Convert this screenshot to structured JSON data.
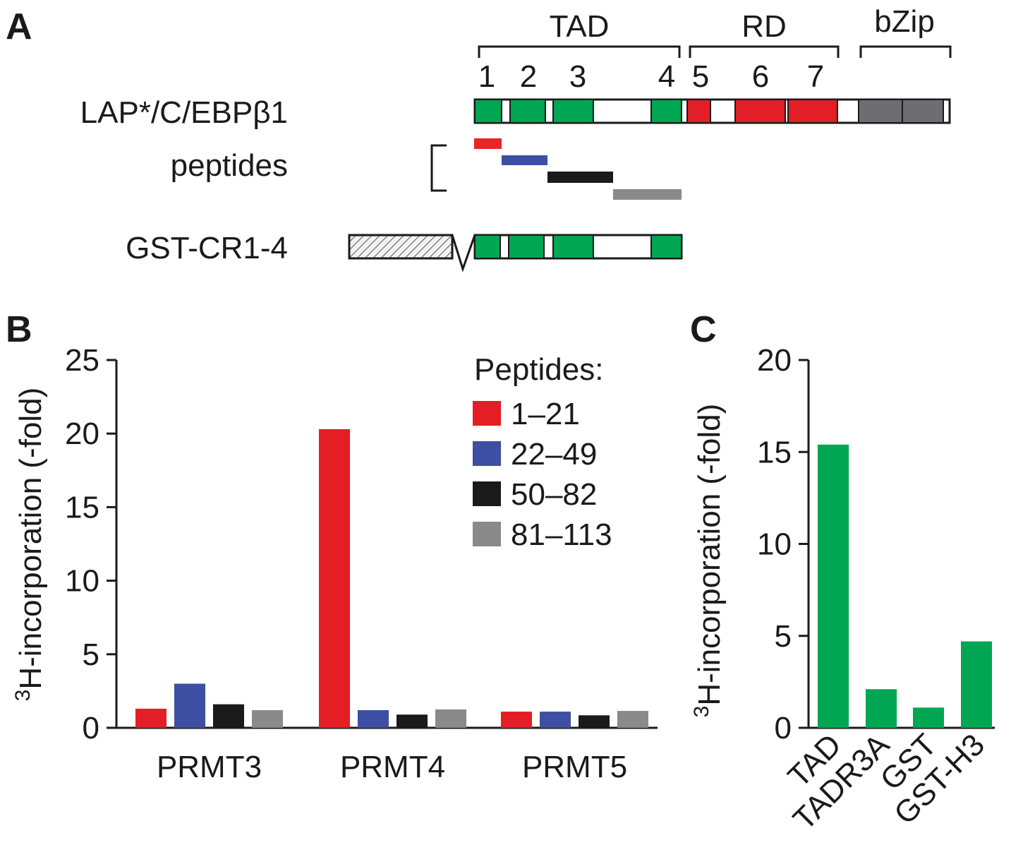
{
  "panels": {
    "a": {
      "letter": "A",
      "regions": [
        {
          "label": "TAD"
        },
        {
          "label": "RD"
        },
        {
          "label": "bZip"
        }
      ],
      "cr_numbers": [
        "1",
        "2",
        "3",
        "4",
        "5",
        "6",
        "7"
      ],
      "protein_label": "LAP*/C/EBPβ1",
      "peptides_label": "peptides",
      "gst_label": "GST-CR1-4",
      "colors": {
        "cr_tad": "#00a651",
        "cr_rd": "#e31e24",
        "bzip": "#6d6e71",
        "outline": "#1a1a1a"
      },
      "peptide_colors": [
        "#e8262a",
        "#3c4fa3",
        "#1a1a1a",
        "#8a8a8a"
      ]
    },
    "b": {
      "letter": "B"
    },
    "c": {
      "letter": "C"
    }
  },
  "chart_data": [
    {
      "type": "bar",
      "panel": "B",
      "ylabel_sup": "3",
      "ylabel": "H-incorporation (-fold)",
      "categories": [
        "PRMT3",
        "PRMT4",
        "PRMT5"
      ],
      "yticks": [
        0,
        5,
        10,
        15,
        20,
        25
      ],
      "ylim": [
        0,
        25
      ],
      "legend_title": "Peptides:",
      "legend_position": "top-right",
      "series": [
        {
          "name": "1–21",
          "color": "#e31e24",
          "values": [
            1.3,
            20.3,
            1.1
          ]
        },
        {
          "name": "22–49",
          "color": "#3c4fa3",
          "values": [
            3.0,
            1.2,
            1.1
          ]
        },
        {
          "name": "50–82",
          "color": "#1a1a1a",
          "values": [
            1.6,
            0.9,
            0.85
          ]
        },
        {
          "name": "81–113",
          "color": "#8a8a8a",
          "values": [
            1.2,
            1.25,
            1.15
          ]
        }
      ]
    },
    {
      "type": "bar",
      "panel": "C",
      "ylabel_sup": "3",
      "ylabel": "H-incorporation (-fold)",
      "categories": [
        "TAD",
        "TADR3A",
        "GST",
        "GST-H3"
      ],
      "yticks": [
        0,
        5,
        10,
        15,
        20
      ],
      "ylim": [
        0,
        20
      ],
      "color": "#00a651",
      "values": [
        15.4,
        2.1,
        1.1,
        4.7
      ]
    }
  ]
}
